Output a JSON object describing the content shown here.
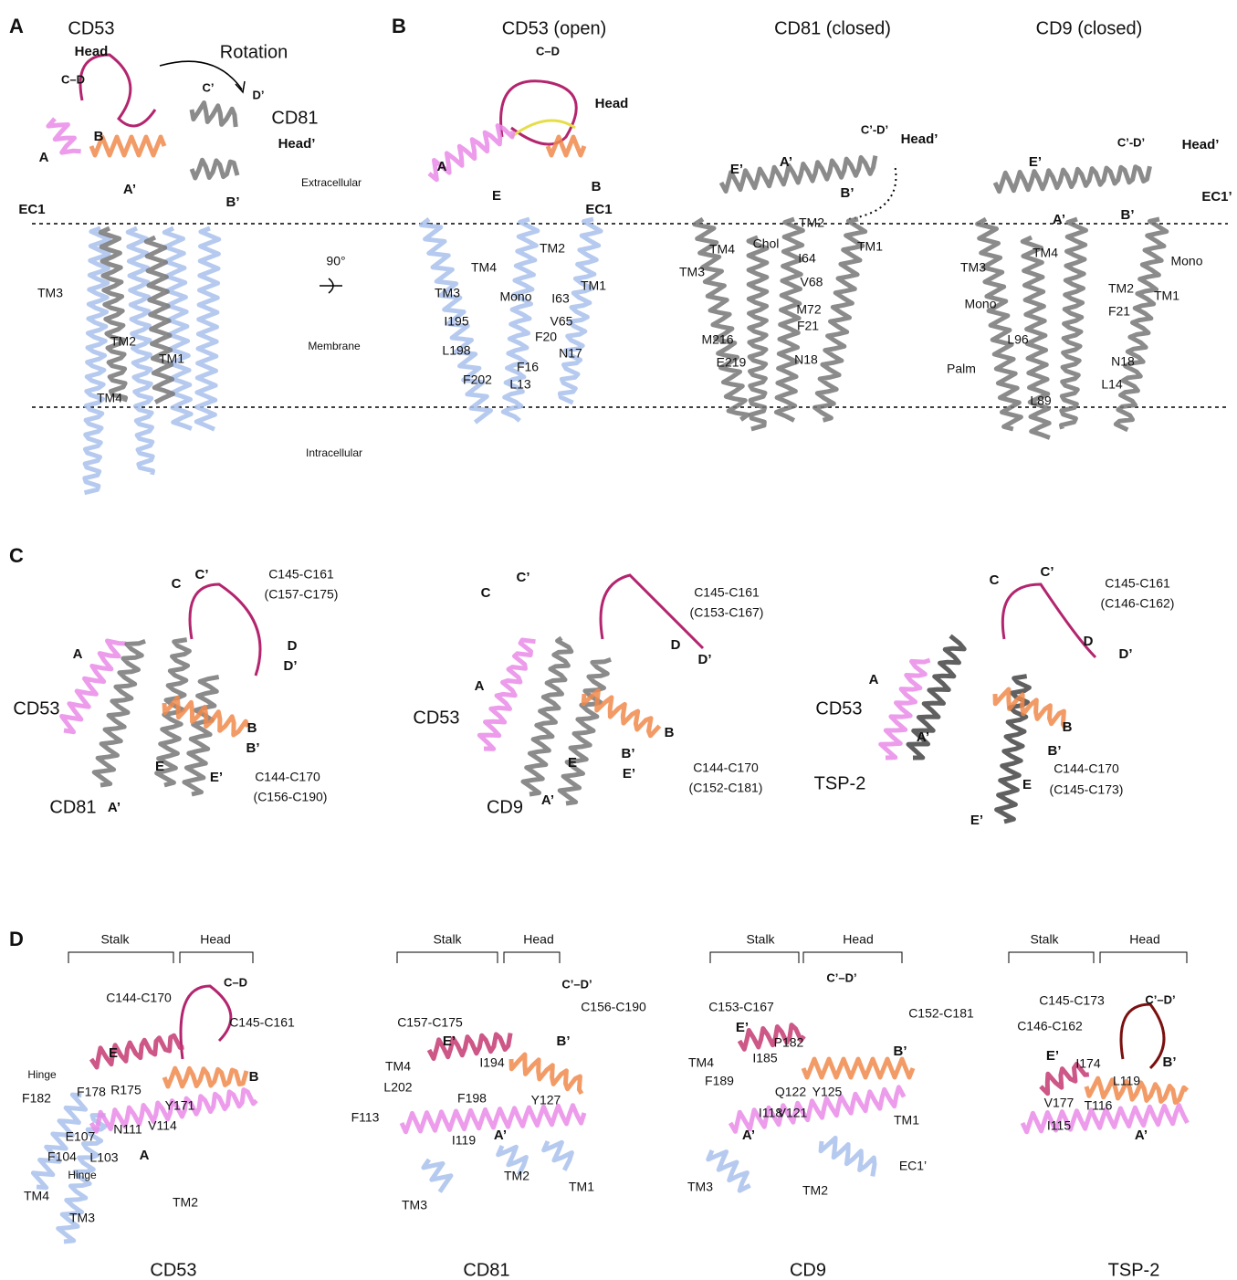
{
  "panels": [
    {
      "letter": "A",
      "labels": [
        "CD53",
        "Head",
        "Rotation",
        "C–D",
        "C’",
        "D’",
        "CD81",
        "Head’",
        "B",
        "A",
        "A’",
        "B’",
        "Extracellular",
        "EC1",
        "90°",
        "TM3",
        "TM2",
        "TM1",
        "TM4",
        "Membrane",
        "Intracellular"
      ]
    },
    {
      "letter": "B",
      "labels": [
        "CD53 (open)",
        "CD81 (closed)",
        "CD9 (closed)",
        "C–D",
        "Head",
        "A",
        "E",
        "B",
        "EC1",
        "TM4",
        "TM2",
        "TM3",
        "TM1",
        "Mono",
        "I63",
        "I195",
        "V65",
        "F20",
        "L198",
        "N17",
        "F16",
        "F202",
        "L13",
        "C’-D’",
        "Head’",
        "E’",
        "A’",
        "B’",
        "TM2",
        "TM4",
        "Chol",
        "I64",
        "TM1",
        "TM3",
        "V68",
        "M72",
        "F21",
        "M216",
        "E219",
        "N18",
        "C’-D’",
        "Head’",
        "E’",
        "A’",
        "B’",
        "EC1’",
        "TM4",
        "TM3",
        "Mono",
        "TM2",
        "TM1",
        "Mono",
        "F21",
        "L96",
        "Palm",
        "N18",
        "L14",
        "L89"
      ]
    },
    {
      "letter": "C",
      "labels": [
        "C",
        "C’",
        "C145-C161",
        "(C157-C175)",
        "D",
        "A",
        "D’",
        "CD53",
        "B",
        "B’",
        "E",
        "E’",
        "C144-C170",
        "(C156-C190)",
        "CD81",
        "A’",
        "C",
        "C’",
        "C145-C161",
        "(C153-C167)",
        "D",
        "A",
        "D’",
        "CD53",
        "B",
        "B’",
        "E’",
        "E",
        "C144-C170",
        "(C152-C181)",
        "CD9",
        "A’",
        "C",
        "C’",
        "C145-C161",
        "(C146-C162)",
        "D",
        "D’",
        "A",
        "CD53",
        "B",
        "A’",
        "B’",
        "E",
        "C144-C170",
        "(C145-C173)",
        "TSP-2",
        "E’"
      ]
    },
    {
      "letter": "D",
      "labels": [
        "Stalk",
        "Head",
        "C–D",
        "C144-C170",
        "C145-C161",
        "E",
        "Hinge",
        "B",
        "F182",
        "F178",
        "R175",
        "Y171",
        "V114",
        "N111",
        "E107",
        "F104",
        "L103",
        "A",
        "Hinge",
        "TM4",
        "TM2",
        "TM3",
        "CD53",
        "Stalk",
        "Head",
        "C’–D’",
        "C156-C190",
        "C157-C175",
        "E’",
        "B’",
        "TM4",
        "I194",
        "L202",
        "F198",
        "Y127",
        "F113",
        "A’",
        "I119",
        "TM2",
        "TM1",
        "TM3",
        "CD81",
        "Stalk",
        "Head",
        "C’–D’",
        "C153-C167",
        "C152-C181",
        "E’",
        "P182",
        "I185",
        "B’",
        "TM4",
        "F189",
        "Q122",
        "Y125",
        "I118",
        "V121",
        "TM1",
        "A’",
        "EC1’",
        "TM3",
        "TM2",
        "CD9",
        "Stalk",
        "Head",
        "C’–D’",
        "C145-C173",
        "C146-C162",
        "E’",
        "I174",
        "B’",
        "L119",
        "V177",
        "T116",
        "I115",
        "A’",
        "TSP-2"
      ]
    }
  ]
}
